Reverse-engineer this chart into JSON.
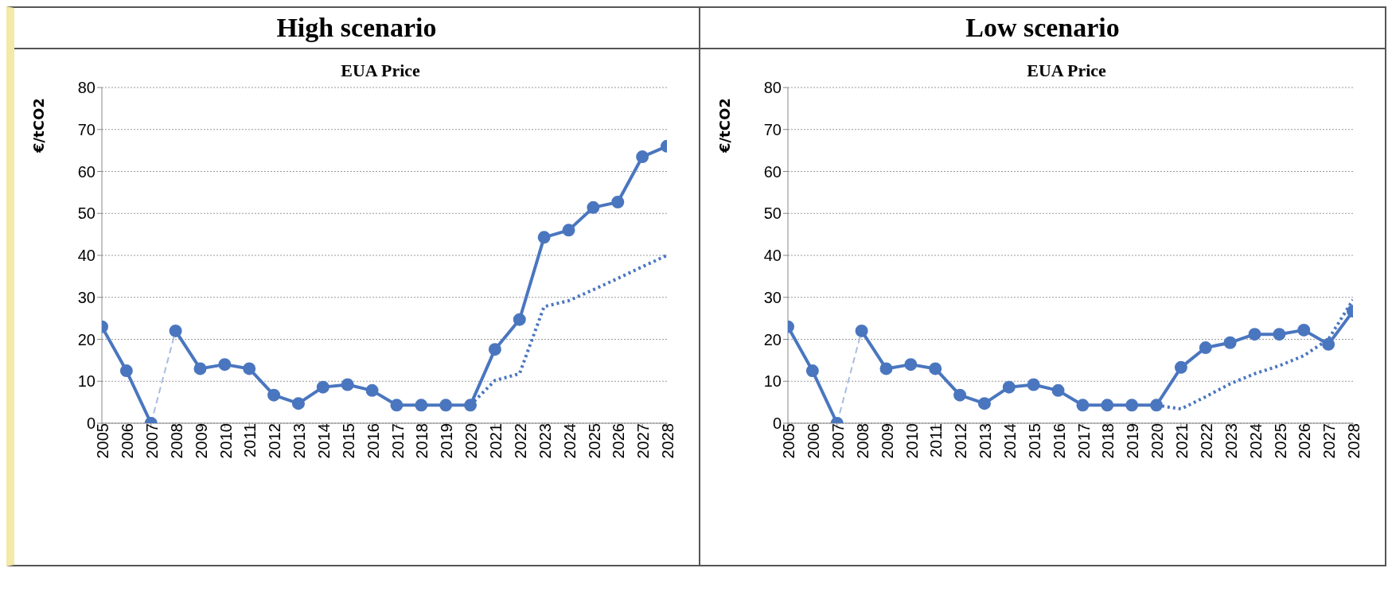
{
  "chart_data": [
    {
      "type": "line",
      "title": "High scenario",
      "subtitle": "EUA Price",
      "ylabel": "€/tCO2",
      "categories": [
        "2005",
        "2006",
        "2007",
        "2008",
        "2009",
        "2010",
        "2011",
        "2012",
        "2013",
        "2014",
        "2015",
        "2016",
        "2017",
        "2018",
        "2019",
        "2020",
        "2021",
        "2022",
        "2023",
        "2024",
        "2025",
        "2026",
        "2027",
        "2028"
      ],
      "ylim": [
        0,
        80
      ],
      "yticks": [
        0,
        10,
        20,
        30,
        40,
        50,
        60,
        70,
        80
      ],
      "grid": "y",
      "legend": false,
      "marker": "circle",
      "line_style": "solid",
      "series": [
        {
          "color": "#4a76bf",
          "values": [
            23,
            12.5,
            0,
            null,
            null,
            null,
            null,
            null,
            null,
            null,
            null,
            null,
            null,
            null,
            null,
            null,
            null,
            null,
            null,
            null,
            null,
            null,
            null,
            null
          ]
        },
        {
          "color": "#a9bde0",
          "line_style": "dashed",
          "marker": "none",
          "values": [
            null,
            null,
            0,
            22,
            null,
            null,
            null,
            null,
            null,
            null,
            null,
            null,
            null,
            null,
            null,
            null,
            null,
            null,
            null,
            null,
            null,
            null,
            null,
            null
          ]
        },
        {
          "color": "#4a76bf",
          "values": [
            null,
            null,
            null,
            22,
            13,
            14,
            13,
            6.7,
            4.7,
            8.6,
            9.2,
            7.8,
            4.3,
            4.3,
            4.3,
            4.3,
            17.6,
            24.7,
            44.3,
            46,
            51.4,
            52.7,
            63.5,
            66
          ]
        },
        {
          "color": "#4a76bf",
          "line_style": "dotted",
          "marker": "none",
          "values": [
            null,
            null,
            null,
            null,
            null,
            null,
            null,
            null,
            null,
            null,
            null,
            null,
            null,
            null,
            null,
            4.3,
            10.2,
            11.8,
            27.8,
            29.2,
            31.8,
            34.5,
            37.3,
            40
          ]
        }
      ]
    },
    {
      "type": "line",
      "title": "Low scenario",
      "subtitle": "EUA Price",
      "ylabel": "€/tCO2",
      "categories": [
        "2005",
        "2006",
        "2007",
        "2008",
        "2009",
        "2010",
        "2011",
        "2012",
        "2013",
        "2014",
        "2015",
        "2016",
        "2017",
        "2018",
        "2019",
        "2020",
        "2021",
        "2022",
        "2023",
        "2024",
        "2025",
        "2026",
        "2027",
        "2028"
      ],
      "ylim": [
        0,
        80
      ],
      "yticks": [
        0,
        10,
        20,
        30,
        40,
        50,
        60,
        70,
        80
      ],
      "grid": "y",
      "legend": false,
      "marker": "circle",
      "line_style": "solid",
      "series": [
        {
          "color": "#4a76bf",
          "values": [
            23,
            12.5,
            0,
            null,
            null,
            null,
            null,
            null,
            null,
            null,
            null,
            null,
            null,
            null,
            null,
            null,
            null,
            null,
            null,
            null,
            null,
            null,
            null,
            null
          ]
        },
        {
          "color": "#a9bde0",
          "line_style": "dashed",
          "marker": "none",
          "values": [
            null,
            null,
            0,
            22,
            null,
            null,
            null,
            null,
            null,
            null,
            null,
            null,
            null,
            null,
            null,
            null,
            null,
            null,
            null,
            null,
            null,
            null,
            null,
            null
          ]
        },
        {
          "color": "#4a76bf",
          "values": [
            null,
            null,
            null,
            22,
            13,
            14,
            13,
            6.7,
            4.7,
            8.6,
            9.2,
            7.8,
            4.3,
            4.3,
            4.3,
            4.3,
            13.3,
            18,
            19.2,
            21.2,
            21.2,
            22.2,
            18.8,
            26.7
          ]
        },
        {
          "color": "#4a76bf",
          "line_style": "dotted",
          "marker": "none",
          "values": [
            null,
            null,
            null,
            null,
            null,
            null,
            null,
            null,
            null,
            null,
            null,
            null,
            null,
            null,
            null,
            4.3,
            3.4,
            6.3,
            9.4,
            11.8,
            13.7,
            16.1,
            20,
            29.4
          ]
        }
      ]
    }
  ]
}
